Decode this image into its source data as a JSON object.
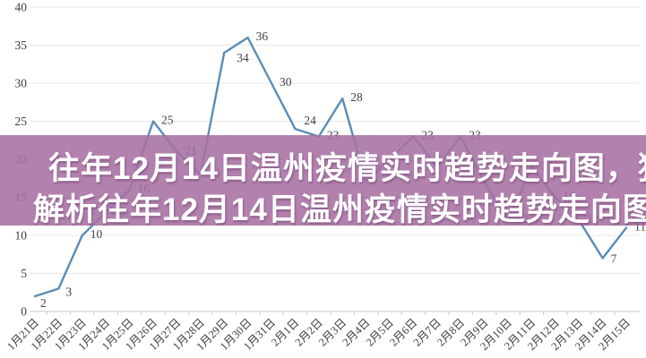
{
  "chart_data": {
    "type": "line",
    "title": "",
    "categories": [
      "1月21日",
      "1月22日",
      "1月23日",
      "1月24日",
      "1月25日",
      "1月26日",
      "1月27日",
      "1月28日",
      "1月29日",
      "1月30日",
      "1月31日",
      "2月1日",
      "2月2日",
      "2月3日",
      "2月4日",
      "2月5日",
      "2月6日",
      "2月7日",
      "2月8日",
      "2月9日",
      "2月10日",
      "2月11日",
      "2月12日",
      "2月13日",
      "2月14日",
      "2月15日"
    ],
    "values": [
      2,
      3,
      10,
      13,
      16,
      25,
      21,
      18,
      34,
      36,
      30,
      24,
      23,
      28,
      17,
      20,
      23,
      19,
      23,
      17,
      12,
      19,
      15,
      12,
      7,
      11
    ],
    "hidden_label_indices": [
      14,
      15,
      17,
      19
    ],
    "y_ticks": [
      0,
      5,
      10,
      15,
      20,
      25,
      30,
      35,
      40
    ],
    "ylim": [
      0,
      40
    ],
    "xlabel": "",
    "ylabel": "",
    "grid": true,
    "legend": "none",
    "line_color": "#5b8cb5",
    "grid_color": "#e8e8e8",
    "axis_color": "#c8c8c8",
    "label_color": "#42424a"
  },
  "overlay": {
    "line1": "往年12月14日温州疫情实时趋势走向图，独家",
    "line2": "解析往年12月14日温州疫情实时趋势走向图，数",
    "bg_color": "#b181ae",
    "text_color": "#ffffff"
  }
}
